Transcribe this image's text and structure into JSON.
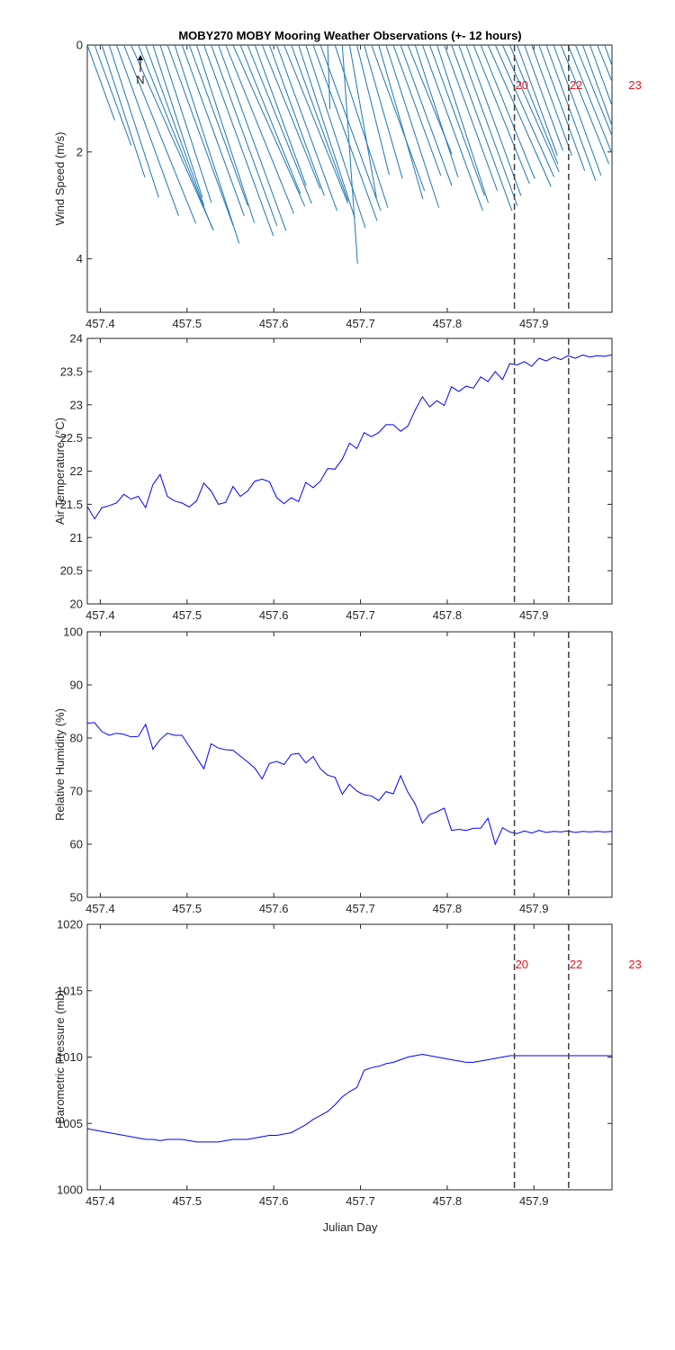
{
  "title": "MOBY270 MOBY Mooring Weather Observations (+- 12 hours)",
  "xlabel": "Julian Day",
  "xlim": [
    457.385,
    457.99
  ],
  "xticks": [
    457.4,
    457.5,
    457.6,
    457.7,
    457.8,
    457.9
  ],
  "xtick_labels": [
    "457.4",
    "457.5",
    "457.6",
    "457.7",
    "457.8",
    "457.9"
  ],
  "vlines": [
    457.8775,
    457.94
  ],
  "vline_labels": [
    "20",
    "22",
    "23"
  ],
  "vline_label_x": [
    457.8775,
    457.94,
    458.008
  ],
  "north_label": "N",
  "colors": {
    "wind": "#1f77b4",
    "line": "#0000ff",
    "marker": "#e8141b",
    "dash": "#404040"
  },
  "chart_data": [
    {
      "type": "quiver",
      "ylabel": "Wind Speed (m/s)",
      "ylim": [
        0,
        5
      ],
      "y_reversed": true,
      "yticks": [
        0,
        2,
        4
      ],
      "ytick_labels": [
        "0",
        "2",
        "4"
      ],
      "x": [
        457.385,
        457.3934,
        457.4018,
        457.4102,
        457.4186,
        457.427,
        457.4354,
        457.4438,
        457.4522,
        457.4606,
        457.469,
        457.4774,
        457.4858,
        457.4942,
        457.5026,
        457.511,
        457.5194,
        457.5278,
        457.5362,
        457.5446,
        457.553,
        457.5614,
        457.5698,
        457.5782,
        457.5866,
        457.595,
        457.6034,
        457.6118,
        457.6202,
        457.6286,
        457.637,
        457.6454,
        457.6538,
        457.6622,
        457.6706,
        457.679,
        457.6874,
        457.6958,
        457.7042,
        457.7126,
        457.721,
        457.7294,
        457.7378,
        457.7462,
        457.7546,
        457.763,
        457.7714,
        457.7798,
        457.7882,
        457.7966,
        457.805,
        457.8134,
        457.8218,
        457.8302,
        457.8386,
        457.847,
        457.8554,
        457.8638,
        457.8722,
        457.8806,
        457.889,
        457.8974,
        457.9058,
        457.9142,
        457.9226,
        457.931,
        457.9394,
        457.9478,
        457.9562,
        457.9646,
        457.973,
        457.9814,
        457.9898
      ],
      "speed": [
        1.5,
        2.0,
        2.6,
        3.0,
        3.4,
        3.6,
        3.8,
        3.7,
        3.2,
        3.0,
        3.1,
        3.6,
        3.9,
        3.4,
        3.2,
        3.5,
        3.8,
        3.6,
        3.7,
        3.4,
        3.3,
        3.0,
        3.2,
        2.8,
        2.9,
        3.0,
        3.3,
        3.2,
        3.1,
        3.4,
        3.6,
        3.5,
        3.3,
        1.2,
        3.2,
        4.1,
        2.9,
        2.5,
        2.6,
        2.9,
        3.0,
        3.2,
        2.6,
        2.8,
        2.2,
        2.6,
        3.3,
        3.0,
        3.1,
        2.9,
        3.3,
        3.2,
        3.0,
        2.8,
        2.7,
        2.9,
        2.7,
        2.6,
        2.4,
        2.2,
        2.1,
        2.2,
        2.5,
        2.7,
        2.6,
        2.4,
        2.5,
        2.7,
        2.8,
        2.5,
        2.4,
        2.2,
        2.6
      ],
      "direction_deg": [
        160,
        160,
        162,
        162,
        160,
        158,
        156,
        158,
        160,
        162,
        162,
        160,
        162,
        160,
        160,
        162,
        160,
        160,
        160,
        158,
        156,
        158,
        158,
        160,
        158,
        160,
        160,
        158,
        160,
        162,
        162,
        160,
        160,
        178,
        162,
        176,
        170,
        166,
        164,
        160,
        164,
        162,
        160,
        160,
        158,
        162,
        160,
        160,
        162,
        160,
        160,
        160,
        160,
        158,
        158,
        156,
        156,
        156,
        158,
        160,
        160,
        160,
        160,
        160,
        160,
        158,
        158,
        158,
        160,
        160,
        158,
        160,
        156
      ]
    },
    {
      "type": "line",
      "ylabel": "Air Temperature (°C)",
      "ylim": [
        20,
        24
      ],
      "yticks": [
        20,
        20.5,
        21,
        21.5,
        22,
        22.5,
        23,
        23.5,
        24
      ],
      "ytick_labels": [
        "20",
        "20.5",
        "21",
        "21.5",
        "22",
        "22.5",
        "23",
        "23.5",
        "24"
      ],
      "x": [
        457.385,
        457.3934,
        457.4018,
        457.4102,
        457.4186,
        457.427,
        457.4354,
        457.4438,
        457.4522,
        457.4606,
        457.469,
        457.4774,
        457.4858,
        457.4942,
        457.5026,
        457.511,
        457.5194,
        457.5278,
        457.5362,
        457.5446,
        457.553,
        457.5614,
        457.5698,
        457.5782,
        457.5866,
        457.595,
        457.6034,
        457.6118,
        457.6202,
        457.6286,
        457.637,
        457.6454,
        457.6538,
        457.6622,
        457.6706,
        457.679,
        457.6874,
        457.6958,
        457.7042,
        457.7126,
        457.721,
        457.7294,
        457.7378,
        457.7462,
        457.7546,
        457.763,
        457.7714,
        457.7798,
        457.7882,
        457.7966,
        457.805,
        457.8134,
        457.8218,
        457.8302,
        457.8386,
        457.847,
        457.8554,
        457.8638,
        457.8722,
        457.8806,
        457.889,
        457.8974,
        457.9058,
        457.9142,
        457.9226,
        457.931,
        457.9394,
        457.9478,
        457.9562,
        457.9646,
        457.973,
        457.9814,
        457.9898
      ],
      "y": [
        21.47,
        21.28,
        21.45,
        21.48,
        21.52,
        21.65,
        21.58,
        21.62,
        21.45,
        21.8,
        21.95,
        21.62,
        21.55,
        21.52,
        21.46,
        21.55,
        21.82,
        21.7,
        21.5,
        21.53,
        21.77,
        21.62,
        21.7,
        21.85,
        21.88,
        21.84,
        21.6,
        21.51,
        21.6,
        21.54,
        21.83,
        21.75,
        21.85,
        22.04,
        22.03,
        22.18,
        22.42,
        22.34,
        22.58,
        22.52,
        22.58,
        22.7,
        22.7,
        22.6,
        22.68,
        22.92,
        23.12,
        22.97,
        23.06,
        22.99,
        23.27,
        23.2,
        23.28,
        23.25,
        23.42,
        23.35,
        23.5,
        23.38,
        23.62,
        23.6,
        23.65,
        23.58,
        23.7,
        23.66,
        23.72,
        23.68,
        23.74,
        23.7,
        23.75,
        23.72,
        23.74,
        23.73,
        23.75
      ]
    },
    {
      "type": "line",
      "ylabel": "Relative Humidity (%)",
      "ylim": [
        50,
        100
      ],
      "yticks": [
        50,
        60,
        70,
        80,
        90,
        100
      ],
      "ytick_labels": [
        "50",
        "60",
        "70",
        "80",
        "90",
        "100"
      ],
      "x": [
        457.385,
        457.3934,
        457.4018,
        457.4102,
        457.4186,
        457.427,
        457.4354,
        457.4438,
        457.4522,
        457.4606,
        457.469,
        457.4774,
        457.4858,
        457.4942,
        457.5026,
        457.511,
        457.5194,
        457.5278,
        457.5362,
        457.5446,
        457.553,
        457.5614,
        457.5698,
        457.5782,
        457.5866,
        457.595,
        457.6034,
        457.6118,
        457.6202,
        457.6286,
        457.637,
        457.6454,
        457.6538,
        457.6622,
        457.6706,
        457.679,
        457.6874,
        457.6958,
        457.7042,
        457.7126,
        457.721,
        457.7294,
        457.7378,
        457.7462,
        457.7546,
        457.763,
        457.7714,
        457.7798,
        457.7882,
        457.7966,
        457.805,
        457.8134,
        457.8218,
        457.8302,
        457.8386,
        457.847,
        457.8554,
        457.8638,
        457.8722,
        457.8806,
        457.889,
        457.8974,
        457.9058,
        457.9142,
        457.9226,
        457.931,
        457.9394,
        457.9478,
        457.9562,
        457.9646,
        457.973,
        457.9814,
        457.9898
      ],
      "y": [
        82.8,
        82.9,
        81.2,
        80.5,
        80.9,
        80.7,
        80.2,
        80.3,
        82.6,
        77.9,
        79.7,
        80.9,
        80.5,
        80.5,
        78.4,
        76.3,
        74.2,
        78.9,
        78.1,
        77.8,
        77.7,
        76.6,
        75.5,
        74.3,
        72.3,
        75.2,
        75.6,
        75.0,
        76.9,
        77.1,
        75.3,
        76.5,
        74.2,
        73.0,
        72.6,
        69.4,
        71.3,
        70.0,
        69.3,
        69.1,
        68.2,
        69.9,
        69.5,
        72.9,
        69.8,
        67.6,
        64.0,
        65.6,
        66.1,
        66.8,
        62.6,
        62.8,
        62.6,
        63.0,
        63.0,
        64.9,
        60.0,
        63.1,
        62.3,
        62.0,
        62.5,
        62.1,
        62.6,
        62.2,
        62.4,
        62.3,
        62.5,
        62.2,
        62.4,
        62.3,
        62.4,
        62.3,
        62.4
      ]
    },
    {
      "type": "line",
      "ylabel": "Barometric Pressure (mb)",
      "ylim": [
        1000,
        1020
      ],
      "yticks": [
        1000,
        1005,
        1010,
        1015,
        1020
      ],
      "ytick_labels": [
        "1000",
        "1005",
        "1010",
        "1015",
        "1020"
      ],
      "x": [
        457.385,
        457.3934,
        457.4018,
        457.4102,
        457.4186,
        457.427,
        457.4354,
        457.4438,
        457.4522,
        457.4606,
        457.469,
        457.4774,
        457.4858,
        457.4942,
        457.5026,
        457.511,
        457.5194,
        457.5278,
        457.5362,
        457.5446,
        457.553,
        457.5614,
        457.5698,
        457.5782,
        457.5866,
        457.595,
        457.6034,
        457.6118,
        457.6202,
        457.6286,
        457.637,
        457.6454,
        457.6538,
        457.6622,
        457.6706,
        457.679,
        457.6874,
        457.6958,
        457.7042,
        457.7126,
        457.721,
        457.7294,
        457.7378,
        457.7462,
        457.7546,
        457.763,
        457.7714,
        457.7798,
        457.7882,
        457.7966,
        457.805,
        457.8134,
        457.8218,
        457.8302,
        457.8386,
        457.847,
        457.8554,
        457.8638,
        457.8722,
        457.8806,
        457.889,
        457.8974,
        457.9058,
        457.9142,
        457.9226,
        457.931,
        457.9394,
        457.9478,
        457.9562,
        457.9646,
        457.973,
        457.9814,
        457.9898
      ],
      "y": [
        1004.6,
        1004.5,
        1004.4,
        1004.3,
        1004.2,
        1004.1,
        1004.0,
        1003.9,
        1003.8,
        1003.8,
        1003.7,
        1003.8,
        1003.8,
        1003.8,
        1003.7,
        1003.6,
        1003.6,
        1003.6,
        1003.6,
        1003.7,
        1003.8,
        1003.8,
        1003.8,
        1003.9,
        1004.0,
        1004.1,
        1004.1,
        1004.2,
        1004.3,
        1004.6,
        1004.9,
        1005.3,
        1005.6,
        1005.9,
        1006.4,
        1007.0,
        1007.4,
        1007.7,
        1009.0,
        1009.2,
        1009.3,
        1009.5,
        1009.6,
        1009.8,
        1010.0,
        1010.1,
        1010.2,
        1010.1,
        1010.0,
        1009.9,
        1009.8,
        1009.7,
        1009.6,
        1009.6,
        1009.7,
        1009.8,
        1009.9,
        1010.0,
        1010.1,
        1010.1,
        1010.1,
        1010.1,
        1010.1,
        1010.1,
        1010.1,
        1010.1,
        1010.1,
        1010.1,
        1010.1,
        1010.1,
        1010.1,
        1010.1,
        1010.1
      ]
    }
  ],
  "marker_label_panels": [
    0,
    3
  ]
}
